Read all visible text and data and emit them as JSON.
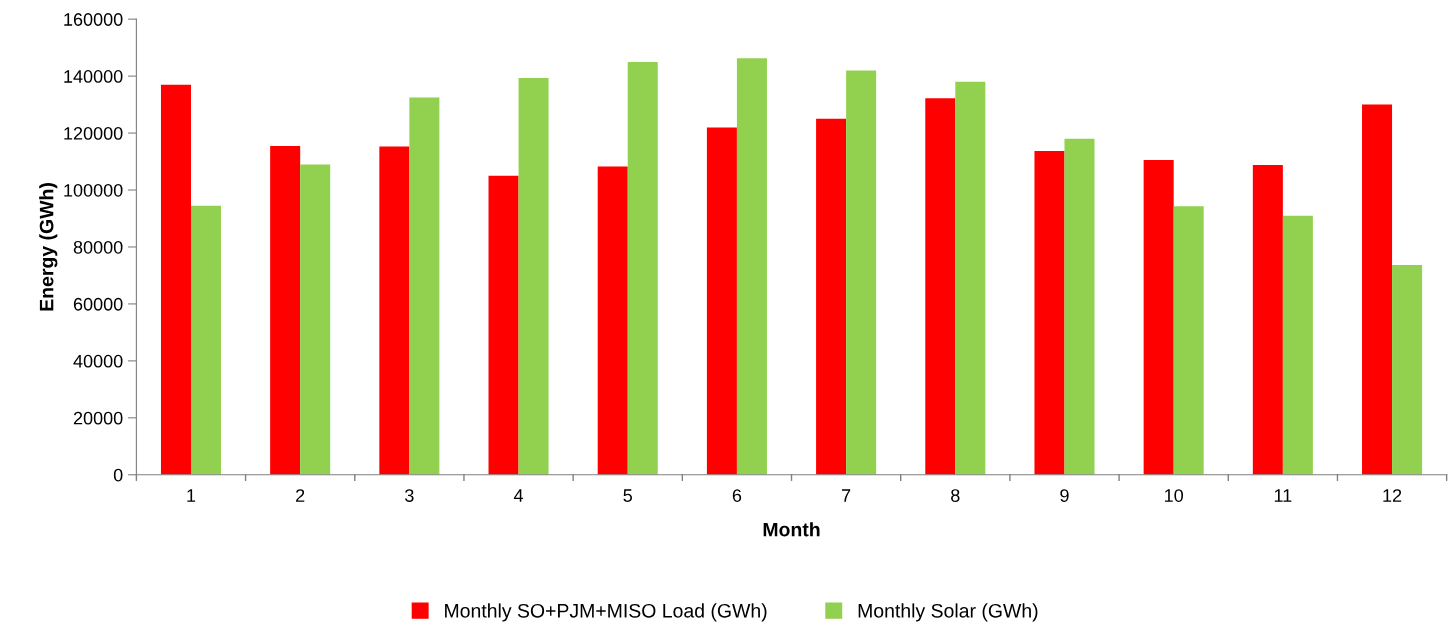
{
  "chart_data": {
    "type": "bar",
    "xlabel": "Month",
    "ylabel": "Energy (GWh)",
    "categories": [
      "1",
      "2",
      "3",
      "4",
      "5",
      "6",
      "7",
      "8",
      "9",
      "10",
      "11",
      "12"
    ],
    "series": [
      {
        "name": "Monthly SO+PJM+MISO Load (GWh)",
        "color": "#ff0000",
        "values": [
          137000,
          115500,
          115300,
          105000,
          108300,
          122000,
          125000,
          132200,
          113700,
          110500,
          108800,
          130000
        ]
      },
      {
        "name": "Monthly Solar (GWh)",
        "color": "#92d050",
        "values": [
          94500,
          109000,
          132500,
          139300,
          145000,
          146300,
          142000,
          138000,
          118000,
          94300,
          91000,
          73700
        ]
      }
    ],
    "ylim": [
      0,
      160000
    ],
    "yticks": [
      0,
      20000,
      40000,
      60000,
      80000,
      100000,
      120000,
      140000,
      160000
    ],
    "legend": "bottom"
  }
}
